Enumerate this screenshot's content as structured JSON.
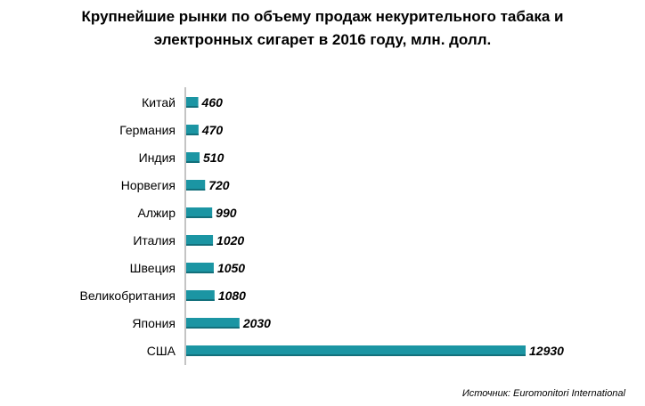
{
  "chart_data": {
    "type": "bar",
    "orientation": "horizontal",
    "title_lines": [
      "Крупнейшие рынки по объему продаж некурительного табака и",
      "электронных сигарет в 2016 году, млн. долл."
    ],
    "categories": [
      "Китай",
      "Германия",
      "Индия",
      "Норвегия",
      "Алжир",
      "Италия",
      "Швеция",
      "Великобритания",
      "Япония",
      "США"
    ],
    "values": [
      460,
      470,
      510,
      720,
      990,
      1020,
      1050,
      1080,
      2030,
      12930
    ],
    "data_labels": [
      "460",
      "470",
      "510",
      "720",
      "990",
      "1020",
      "1050",
      "1080",
      "2030",
      "12930"
    ],
    "xlim": [
      0,
      12930
    ],
    "grid": false,
    "legend": "none",
    "bar_color": "#1b95a3",
    "source": "Источник: Euromonitori International"
  }
}
